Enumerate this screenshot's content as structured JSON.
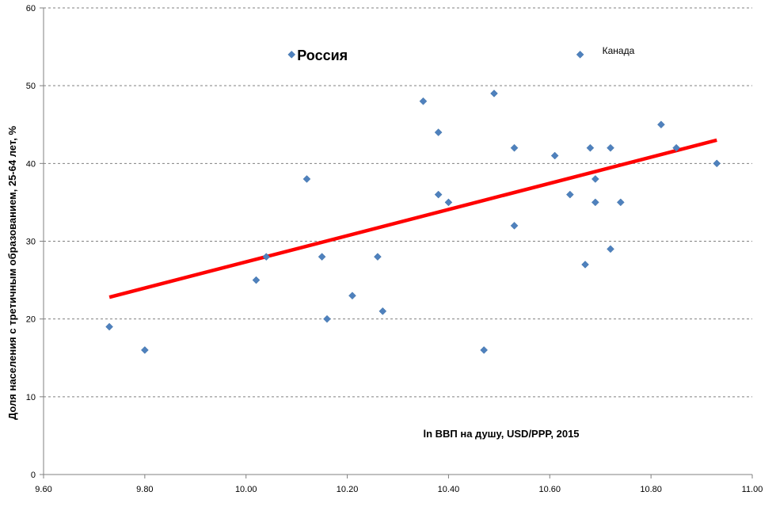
{
  "chart_data": {
    "type": "scatter",
    "xlabel": "ln ВВП на душу, USD/PPP, 2015",
    "ylabel": "Доля населения с третичным образованием, 25-64 лет, %",
    "xlim": [
      9.6,
      11.0
    ],
    "ylim": [
      0,
      60
    ],
    "x_ticks": [
      "9.60",
      "9.80",
      "10.00",
      "10.20",
      "10.40",
      "10.60",
      "10.80",
      "11.00"
    ],
    "y_ticks": [
      "0",
      "10",
      "20",
      "30",
      "40",
      "50",
      "60"
    ],
    "grid": "horizontal dashed",
    "marker_color": "#4F81BD",
    "trend_color": "#FF0000",
    "points": [
      {
        "x": 9.73,
        "y": 19
      },
      {
        "x": 9.8,
        "y": 16
      },
      {
        "x": 10.02,
        "y": 25
      },
      {
        "x": 10.04,
        "y": 28
      },
      {
        "x": 10.09,
        "y": 54
      },
      {
        "x": 10.12,
        "y": 38
      },
      {
        "x": 10.15,
        "y": 28
      },
      {
        "x": 10.16,
        "y": 20
      },
      {
        "x": 10.21,
        "y": 23
      },
      {
        "x": 10.26,
        "y": 28
      },
      {
        "x": 10.27,
        "y": 21
      },
      {
        "x": 10.35,
        "y": 48
      },
      {
        "x": 10.38,
        "y": 44
      },
      {
        "x": 10.38,
        "y": 36
      },
      {
        "x": 10.4,
        "y": 35
      },
      {
        "x": 10.47,
        "y": 16
      },
      {
        "x": 10.49,
        "y": 49
      },
      {
        "x": 10.53,
        "y": 42
      },
      {
        "x": 10.53,
        "y": 32
      },
      {
        "x": 10.61,
        "y": 41
      },
      {
        "x": 10.64,
        "y": 36
      },
      {
        "x": 10.66,
        "y": 54
      },
      {
        "x": 10.67,
        "y": 27
      },
      {
        "x": 10.68,
        "y": 42
      },
      {
        "x": 10.69,
        "y": 35
      },
      {
        "x": 10.69,
        "y": 38
      },
      {
        "x": 10.72,
        "y": 29
      },
      {
        "x": 10.72,
        "y": 42
      },
      {
        "x": 10.74,
        "y": 35
      },
      {
        "x": 10.82,
        "y": 45
      },
      {
        "x": 10.85,
        "y": 42
      },
      {
        "x": 10.93,
        "y": 40
      }
    ],
    "trendline": {
      "x": [
        9.73,
        10.93
      ],
      "y": [
        22.8,
        43.0
      ]
    },
    "annotations": [
      {
        "text": "Россия",
        "x": 10.09,
        "y": 54
      },
      {
        "text": "Канада",
        "x": 10.66,
        "y": 54
      }
    ]
  }
}
